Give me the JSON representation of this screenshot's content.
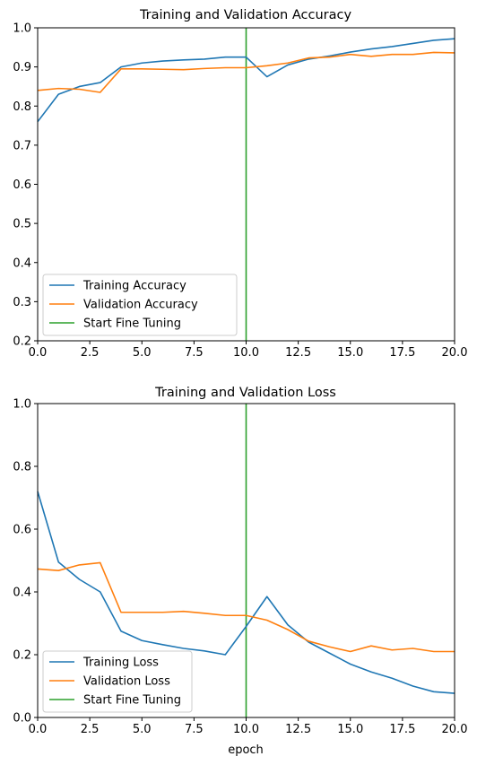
{
  "chart_data": [
    {
      "type": "line",
      "title": "Training and Validation Accuracy",
      "xlabel": "",
      "ylabel": "",
      "xlim": [
        0,
        20
      ],
      "ylim": [
        0.2,
        1.0
      ],
      "xticks": [
        0,
        2.5,
        5,
        7.5,
        10,
        12.5,
        15,
        17.5,
        20
      ],
      "xtick_labels": [
        "0.0",
        "2.5",
        "5.0",
        "7.5",
        "10.0",
        "12.5",
        "15.0",
        "17.5",
        "20.0"
      ],
      "yticks": [
        0.2,
        0.3,
        0.4,
        0.5,
        0.6,
        0.7,
        0.8,
        0.9,
        1.0
      ],
      "ytick_labels": [
        "0.2",
        "0.3",
        "0.4",
        "0.5",
        "0.6",
        "0.7",
        "0.8",
        "0.9",
        "1.0"
      ],
      "grid": false,
      "legend_position": "bottom-left",
      "x": [
        0,
        1,
        2,
        3,
        4,
        5,
        6,
        7,
        8,
        9,
        10,
        11,
        12,
        13,
        14,
        15,
        16,
        17,
        18,
        19,
        20
      ],
      "series": [
        {
          "name": "Training Accuracy",
          "color": "#1f77b4",
          "values": [
            0.76,
            0.83,
            0.85,
            0.86,
            0.9,
            0.91,
            0.915,
            0.918,
            0.92,
            0.925,
            0.925,
            0.875,
            0.905,
            0.92,
            0.928,
            0.938,
            0.946,
            0.952,
            0.96,
            0.968,
            0.972
          ]
        },
        {
          "name": "Validation Accuracy",
          "color": "#ff7f0e",
          "values": [
            0.84,
            0.845,
            0.843,
            0.835,
            0.895,
            0.895,
            0.894,
            0.893,
            0.896,
            0.898,
            0.898,
            0.903,
            0.91,
            0.923,
            0.925,
            0.932,
            0.927,
            0.932,
            0.932,
            0.937,
            0.936
          ]
        }
      ],
      "vline": {
        "name": "Start Fine Tuning",
        "x": 10,
        "color": "#2ca02c"
      }
    },
    {
      "type": "line",
      "title": "Training and Validation Loss",
      "xlabel": "epoch",
      "ylabel": "",
      "xlim": [
        0,
        20
      ],
      "ylim": [
        0.0,
        1.0
      ],
      "xticks": [
        0,
        2.5,
        5,
        7.5,
        10,
        12.5,
        15,
        17.5,
        20
      ],
      "xtick_labels": [
        "0.0",
        "2.5",
        "5.0",
        "7.5",
        "10.0",
        "12.5",
        "15.0",
        "17.5",
        "20.0"
      ],
      "yticks": [
        0.0,
        0.2,
        0.4,
        0.6,
        0.8,
        1.0
      ],
      "ytick_labels": [
        "0.0",
        "0.2",
        "0.4",
        "0.6",
        "0.8",
        "1.0"
      ],
      "grid": false,
      "legend_position": "bottom-left",
      "x": [
        0,
        1,
        2,
        3,
        4,
        5,
        6,
        7,
        8,
        9,
        10,
        11,
        12,
        13,
        14,
        15,
        16,
        17,
        18,
        19,
        20
      ],
      "series": [
        {
          "name": "Training Loss",
          "color": "#1f77b4",
          "values": [
            0.72,
            0.495,
            0.44,
            0.4,
            0.275,
            0.245,
            0.232,
            0.22,
            0.212,
            0.2,
            0.29,
            0.385,
            0.295,
            0.24,
            0.205,
            0.17,
            0.145,
            0.125,
            0.1,
            0.082,
            0.077
          ]
        },
        {
          "name": "Validation Loss",
          "color": "#ff7f0e",
          "values": [
            0.473,
            0.468,
            0.486,
            0.493,
            0.335,
            0.335,
            0.335,
            0.338,
            0.332,
            0.325,
            0.325,
            0.31,
            0.28,
            0.243,
            0.225,
            0.21,
            0.228,
            0.215,
            0.22,
            0.21,
            0.21
          ]
        }
      ],
      "vline": {
        "name": "Start Fine Tuning",
        "x": 10,
        "color": "#2ca02c"
      }
    }
  ]
}
